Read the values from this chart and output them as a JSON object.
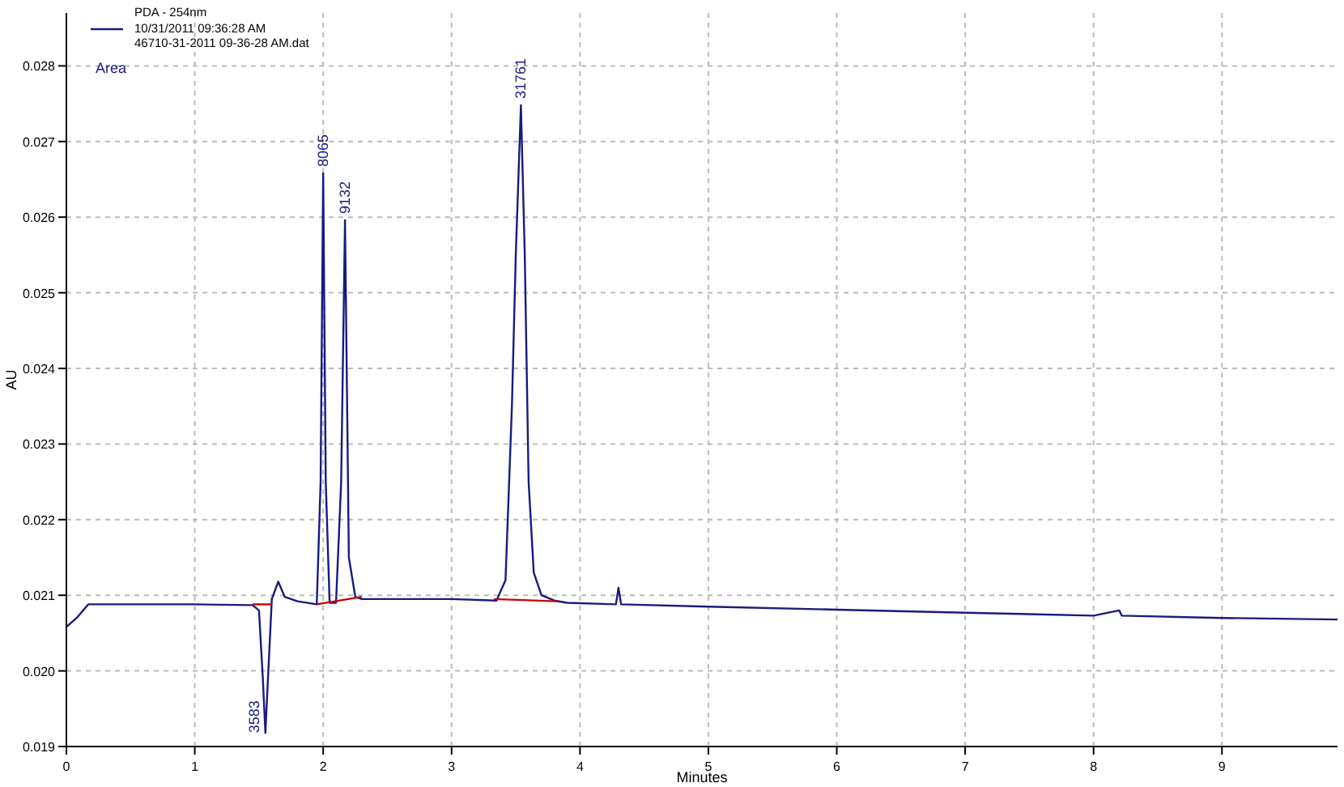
{
  "chart_data": {
    "type": "line",
    "xlabel": "Minutes",
    "ylabel": "AU",
    "legend_title": "PDA - 254nm",
    "legend": "top left",
    "grid": true,
    "line_style": "solid",
    "xlim": [
      0,
      9.9
    ],
    "ylim": [
      0.019,
      0.0287
    ],
    "xticks": [
      0,
      1,
      2,
      3,
      4,
      5,
      6,
      7,
      8,
      9
    ],
    "yticks": [
      {
        "value": 0.019,
        "label": "0.019"
      },
      {
        "value": 0.02,
        "label": "0.020"
      },
      {
        "value": 0.021,
        "label": "0.021"
      },
      {
        "value": 0.022,
        "label": "0.022"
      },
      {
        "value": 0.023,
        "label": "0.023"
      },
      {
        "value": 0.024,
        "label": "0.024"
      },
      {
        "value": 0.025,
        "label": "0.025"
      },
      {
        "value": 0.026,
        "label": "0.026"
      },
      {
        "value": 0.027,
        "label": "0.027"
      },
      {
        "value": 0.028,
        "label": "0.028"
      }
    ],
    "series": [
      {
        "name": "10/31/2011 09:36:28 AM",
        "color": "#1a1a80",
        "x": [
          0,
          0.08,
          0.17,
          0.5,
          1,
          1.45,
          1.5,
          1.53,
          1.55,
          1.57,
          1.6,
          1.65,
          1.7,
          1.8,
          1.95,
          1.98,
          2.0,
          2.02,
          2.05,
          2.1,
          2.14,
          2.17,
          2.2,
          2.25,
          2.3,
          2.6,
          3,
          3.35,
          3.42,
          3.47,
          3.5,
          3.54,
          3.57,
          3.6,
          3.64,
          3.7,
          3.8,
          3.9,
          4.28,
          4.3,
          4.32,
          5,
          6,
          7,
          8,
          8.2,
          8.22,
          9,
          9.9
        ],
        "values": [
          0.02058,
          0.0207,
          0.02088,
          0.02088,
          0.02088,
          0.02087,
          0.0208,
          0.0199,
          0.01918,
          0.0199,
          0.02095,
          0.02118,
          0.02098,
          0.02092,
          0.02088,
          0.0225,
          0.02658,
          0.0225,
          0.0209,
          0.0209,
          0.0225,
          0.02596,
          0.0215,
          0.02098,
          0.02095,
          0.02095,
          0.02095,
          0.02093,
          0.0212,
          0.0235,
          0.0255,
          0.02748,
          0.0255,
          0.0225,
          0.0213,
          0.021,
          0.02093,
          0.0209,
          0.02088,
          0.0211,
          0.02088,
          0.02085,
          0.02081,
          0.02077,
          0.02073,
          0.0208,
          0.02073,
          0.0207,
          0.02068
        ]
      },
      {
        "color": "#cc0000",
        "x": [
          1.45,
          1.6
        ],
        "values": [
          0.02088,
          0.02088
        ]
      },
      {
        "color": "#cc0000",
        "x": [
          1.95,
          2.3
        ],
        "values": [
          0.02088,
          0.02098
        ]
      },
      {
        "color": "#cc0000",
        "x": [
          3.33,
          3.82
        ],
        "values": [
          0.02095,
          0.02092
        ]
      }
    ],
    "annotations": [
      "46710-31-2011 09-36-28 AM.dat",
      "Area",
      {
        "text": "3583",
        "x": 1.55,
        "y": 0.01918
      },
      {
        "text": "8065",
        "x": 2.0,
        "y": 0.02658
      },
      {
        "text": "9132",
        "x": 2.17,
        "y": 0.02596
      },
      {
        "text": "31761",
        "x": 3.54,
        "y": 0.02748
      }
    ]
  }
}
